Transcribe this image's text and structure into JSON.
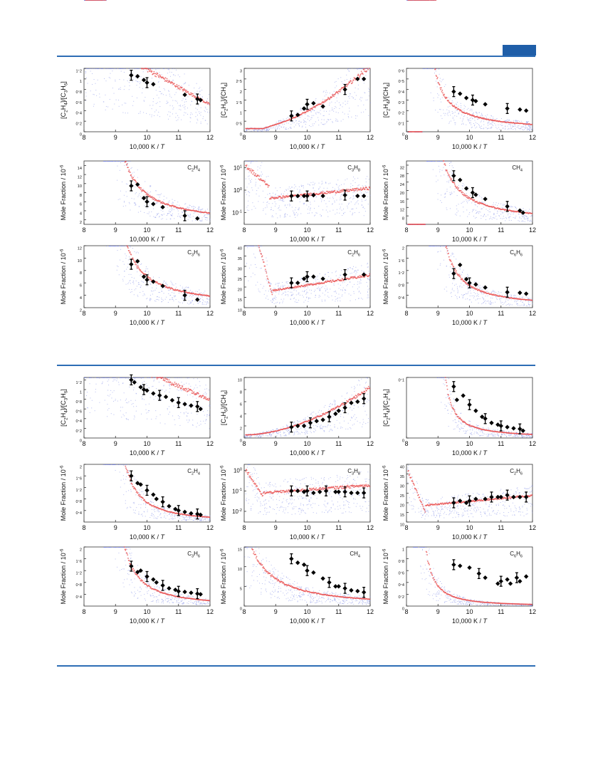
{
  "colors": {
    "accent": "#2d6db5",
    "sim_red": "#e84a4a",
    "sim_blue": "#7a86e6",
    "marker": "#000000"
  },
  "figure_a": {
    "xlabel": "10,000 K / T",
    "panels": [
      {
        "ylabel_html": "[C2H4]/[C3H6]",
        "label": "",
        "ylog": false,
        "ylim": [
          0,
          1.2
        ],
        "yticks": [
          "0",
          "0.2",
          "0.4",
          "0.6",
          "0.8",
          "1",
          "1.2"
        ]
      },
      {
        "ylabel_html": "[C2H6]/[CH4]",
        "label": "",
        "ylog": false,
        "ylim": [
          0,
          3
        ],
        "yticks": [
          "0",
          "0.5",
          "1",
          "1.5",
          "2",
          "2.5",
          "3"
        ]
      },
      {
        "ylabel_html": "[C2H4]/[CH4]",
        "label": "",
        "ylog": false,
        "ylim": [
          0,
          0.6
        ],
        "yticks": [
          "0",
          "0.1",
          "0.2",
          "0.3",
          "0.4",
          "0.5",
          "0.6"
        ]
      },
      {
        "ylabel_html": "Mole Fraction / 10-6",
        "label": "C2H4",
        "ylog": false,
        "ylim": [
          1,
          15
        ],
        "yticks": [
          "2",
          "4",
          "6",
          "8",
          "10",
          "12",
          "14"
        ]
      },
      {
        "ylabel_html": "Mole Fraction / 10-6",
        "label": "C3H8",
        "ylog": true,
        "ylim": [
          0.03,
          20
        ],
        "yticks": [
          "10-1",
          "100",
          "101"
        ]
      },
      {
        "ylabel_html": "Mole Fraction / 10-6",
        "label": "CH4",
        "ylog": false,
        "ylim": [
          4,
          34
        ],
        "yticks": [
          "8",
          "12",
          "16",
          "20",
          "24",
          "28",
          "32"
        ]
      },
      {
        "ylabel_html": "Mole Fraction / 10-6",
        "label": "C3H6",
        "ylog": false,
        "ylim": [
          2,
          12
        ],
        "yticks": [
          "2",
          "4",
          "6",
          "8",
          "10",
          "12"
        ]
      },
      {
        "ylabel_html": "Mole Fraction / 10-6",
        "label": "C2H6",
        "ylog": false,
        "ylim": [
          10,
          40
        ],
        "yticks": [
          "10",
          "15",
          "20",
          "25",
          "30",
          "35",
          "40"
        ]
      },
      {
        "ylabel_html": "Mole Fraction / 10-6",
        "label": "C6H6",
        "ylog": false,
        "ylim": [
          0,
          2
        ],
        "yticks": [
          "0.4",
          "0.8",
          "1.2",
          "1.6",
          "2"
        ]
      }
    ]
  },
  "figure_b": {
    "xlabel": "10,000 K / T",
    "panels": [
      {
        "ylabel_html": "[C2H4]/[C3H6]",
        "label": "",
        "ylog": false,
        "ylim": [
          0,
          1.25
        ],
        "yticks": [
          "0",
          "0.2",
          "0.4",
          "0.6",
          "0.8",
          "1",
          "1.2"
        ]
      },
      {
        "ylabel_html": "[C2H6]/[CH4]",
        "label": "",
        "ylog": false,
        "ylim": [
          0,
          10
        ],
        "yticks": [
          "0",
          "2",
          "4",
          "6",
          "8",
          "10"
        ]
      },
      {
        "ylabel_html": "[C2H4]/[C2H6]",
        "label": "",
        "ylog": false,
        "ylim": [
          0,
          0.1
        ],
        "yticks": [
          "0",
          "0.1"
        ]
      },
      {
        "ylabel_html": "Mole Fraction / 10-6",
        "label": "C2H4",
        "ylog": false,
        "ylim": [
          0,
          2
        ],
        "yticks": [
          "0.4",
          "0.8",
          "1.2",
          "1.6",
          "2"
        ]
      },
      {
        "ylabel_html": "Mole Fraction / 10-6",
        "label": "C3H8",
        "ylog": true,
        "ylim": [
          0.003,
          2
        ],
        "yticks": [
          "10-2",
          "10-1",
          "100"
        ]
      },
      {
        "ylabel_html": "Mole Fraction / 10-6",
        "label": "C2H6",
        "ylog": false,
        "ylim": [
          10,
          40
        ],
        "yticks": [
          "10",
          "15",
          "20",
          "25",
          "30",
          "35",
          "40"
        ]
      },
      {
        "ylabel_html": "Mole Fraction / 10-6",
        "label": "C3H6",
        "ylog": false,
        "ylim": [
          0,
          2
        ],
        "yticks": [
          "0.4",
          "0.8",
          "1.2",
          "1.6",
          "2"
        ]
      },
      {
        "ylabel_html": "Mole Fraction / 10-6",
        "label": "CH4",
        "ylog": false,
        "ylim": [
          0,
          15
        ],
        "yticks": [
          "0",
          "5",
          "10",
          "15"
        ]
      },
      {
        "ylabel_html": "Mole Fraction / 10-6",
        "label": "C6H6",
        "ylog": false,
        "ylim": [
          0,
          1
        ],
        "yticks": [
          "0",
          "0.2",
          "0.4",
          "0.6",
          "0.8",
          "1"
        ]
      }
    ]
  },
  "chart_data": [
    {
      "type": "scatter",
      "xlabel": "10,000 K / T",
      "ylabel": "[C2H4]/[C3H6]",
      "xlim": [
        8,
        12
      ],
      "ylim": [
        0,
        1.2
      ],
      "series": [
        {
          "values_x": [
            9.5,
            9.7,
            9.9,
            10.0,
            10.2,
            11.2,
            11.6,
            11.7
          ],
          "values_y": [
            1.07,
            1.05,
            0.98,
            0.93,
            0.9,
            0.7,
            0.62,
            0.6
          ]
        }
      ]
    },
    {
      "type": "scatter",
      "xlabel": "10,000 K / T",
      "ylabel": "[C2H6]/[CH4]",
      "xlim": [
        8,
        12
      ],
      "ylim": [
        0,
        3
      ],
      "series": [
        {
          "values_x": [
            9.5,
            9.7,
            9.9,
            10.0,
            10.2,
            10.5,
            11.2,
            11.6,
            11.8
          ],
          "values_y": [
            0.75,
            0.8,
            1.1,
            1.3,
            1.35,
            1.2,
            2.0,
            2.5,
            2.5
          ]
        }
      ]
    },
    {
      "type": "scatter",
      "xlabel": "10,000 K / T",
      "ylabel": "[C2H4]/[CH4]",
      "xlim": [
        8,
        12
      ],
      "ylim": [
        0,
        0.6
      ],
      "series": [
        {
          "values_x": [
            9.5,
            9.7,
            9.9,
            10.1,
            10.2,
            10.5,
            11.2,
            11.6,
            11.8
          ],
          "values_y": [
            0.38,
            0.36,
            0.32,
            0.3,
            0.29,
            0.26,
            0.22,
            0.21,
            0.2
          ]
        }
      ]
    },
    {
      "type": "scatter",
      "xlabel": "10,000 K / T",
      "ylabel": "Mole Fraction / 10-6",
      "xlim": [
        8,
        12
      ],
      "ylim": [
        1,
        15
      ],
      "series": [
        {
          "name": "C2H4",
          "values_x": [
            9.5,
            9.7,
            9.9,
            10.0,
            10.2,
            10.5,
            11.2,
            11.6
          ],
          "values_y": [
            9.5,
            9.8,
            6.8,
            6.0,
            5.5,
            4.8,
            2.9,
            2.3
          ]
        }
      ]
    },
    {
      "type": "scatter",
      "xlabel": "10,000 K / T",
      "ylabel": "Mole Fraction / 10-6",
      "xlim": [
        8,
        12
      ],
      "ylim": [
        0.03,
        20
      ],
      "ylog": true,
      "series": [
        {
          "name": "C3H8",
          "values_x": [
            9.5,
            9.7,
            9.9,
            10.0,
            10.2,
            10.5,
            11.2,
            11.6,
            11.8
          ],
          "values_y": [
            0.55,
            0.55,
            0.55,
            0.55,
            0.6,
            0.55,
            0.6,
            0.55,
            0.55
          ]
        }
      ]
    },
    {
      "type": "scatter",
      "xlabel": "10,000 K / T",
      "ylabel": "Mole Fraction / 10-6",
      "xlim": [
        8,
        12
      ],
      "ylim": [
        4,
        34
      ],
      "series": [
        {
          "name": "CH4",
          "values_x": [
            9.5,
            9.7,
            9.9,
            10.1,
            10.2,
            10.5,
            11.2,
            11.6,
            11.7
          ],
          "values_y": [
            27,
            25,
            21,
            19,
            18,
            16,
            12.5,
            10.5,
            9.5
          ]
        }
      ]
    },
    {
      "type": "scatter",
      "xlabel": "10,000 K / T",
      "ylabel": "Mole Fraction / 10-6",
      "xlim": [
        8,
        12
      ],
      "ylim": [
        2,
        12
      ],
      "series": [
        {
          "name": "C3H6",
          "values_x": [
            9.5,
            9.7,
            9.9,
            10.0,
            10.2,
            10.5,
            11.2,
            11.6
          ],
          "values_y": [
            9.0,
            9.5,
            7.0,
            6.5,
            6.2,
            5.5,
            4.0,
            3.3
          ]
        }
      ]
    },
    {
      "type": "scatter",
      "xlabel": "10,000 K / T",
      "ylabel": "Mole Fraction / 10-6",
      "xlim": [
        8,
        12
      ],
      "ylim": [
        10,
        40
      ],
      "series": [
        {
          "name": "C2H6",
          "values_x": [
            9.5,
            9.7,
            9.9,
            10.0,
            10.2,
            10.5,
            11.2,
            11.8
          ],
          "values_y": [
            22,
            22,
            24,
            25,
            25,
            24,
            26,
            26
          ]
        }
      ]
    },
    {
      "type": "scatter",
      "xlabel": "10,000 K / T",
      "ylabel": "Mole Fraction / 10-6",
      "xlim": [
        8,
        12
      ],
      "ylim": [
        0,
        2
      ],
      "series": [
        {
          "name": "C6H6",
          "values_x": [
            9.5,
            9.7,
            9.9,
            10.0,
            10.2,
            10.5,
            11.2,
            11.6,
            11.8
          ],
          "values_y": [
            1.1,
            1.38,
            0.92,
            0.8,
            0.75,
            0.65,
            0.5,
            0.48,
            0.45
          ]
        }
      ]
    },
    {
      "type": "scatter",
      "xlabel": "10,000 K / T",
      "ylabel": "[C2H4]/[C3H6]",
      "xlim": [
        8,
        12
      ],
      "ylim": [
        0,
        1.25
      ],
      "series": [
        {
          "values_x": [
            9.5,
            9.6,
            9.8,
            9.9,
            10.0,
            10.2,
            10.4,
            10.6,
            10.8,
            11.0,
            11.2,
            11.4,
            11.6,
            11.7
          ],
          "values_y": [
            1.2,
            1.15,
            1.05,
            1.0,
            0.98,
            0.92,
            0.88,
            0.85,
            0.78,
            0.73,
            0.7,
            0.67,
            0.65,
            0.6
          ]
        }
      ]
    },
    {
      "type": "scatter",
      "xlabel": "10,000 K / T",
      "ylabel": "[C2H6]/[CH4]",
      "xlim": [
        8,
        12
      ],
      "ylim": [
        0,
        10
      ],
      "series": [
        {
          "values_x": [
            9.5,
            9.7,
            9.9,
            10.1,
            10.3,
            10.5,
            10.7,
            10.9,
            11.0,
            11.2,
            11.4,
            11.6,
            11.8
          ],
          "values_y": [
            1.8,
            2.0,
            2.0,
            2.5,
            2.8,
            3.0,
            3.5,
            4.0,
            4.5,
            5.0,
            5.8,
            6.0,
            6.5
          ]
        }
      ]
    },
    {
      "type": "scatter",
      "xlabel": "10,000 K / T",
      "ylabel": "[C2H4]/[C2H6]",
      "xlim": [
        8,
        12
      ],
      "ylim": [
        0,
        0.1
      ],
      "series": [
        {
          "values_x": [
            9.5,
            9.6,
            9.8,
            10.0,
            10.2,
            10.4,
            10.5,
            10.7,
            10.9,
            11.0,
            11.2,
            11.4,
            11.6,
            11.7
          ],
          "values_y": [
            0.085,
            0.063,
            0.07,
            0.055,
            0.045,
            0.035,
            0.032,
            0.025,
            0.022,
            0.02,
            0.018,
            0.016,
            0.015,
            0.012
          ]
        }
      ]
    },
    {
      "type": "scatter",
      "xlabel": "10,000 K / T",
      "ylabel": "Mole Fraction / 10-6",
      "xlim": [
        8,
        12
      ],
      "ylim": [
        0,
        2
      ],
      "series": [
        {
          "name": "C2H4",
          "values_x": [
            9.5,
            9.7,
            9.8,
            10.0,
            10.2,
            10.3,
            10.5,
            10.7,
            10.9,
            11.0,
            11.2,
            11.4,
            11.6,
            11.7
          ],
          "values_y": [
            1.6,
            1.35,
            1.3,
            1.1,
            0.95,
            0.8,
            0.7,
            0.55,
            0.45,
            0.4,
            0.35,
            0.3,
            0.28,
            0.25
          ]
        }
      ]
    },
    {
      "type": "scatter",
      "xlabel": "10,000 K / T",
      "ylabel": "Mole Fraction / 10-6",
      "xlim": [
        8,
        12
      ],
      "ylim": [
        0.003,
        2
      ],
      "ylog": true,
      "series": [
        {
          "name": "C3H8",
          "values_x": [
            9.5,
            9.7,
            9.9,
            10.0,
            10.2,
            10.4,
            10.6,
            10.9,
            11.0,
            11.2,
            11.4,
            11.6,
            11.8
          ],
          "values_y": [
            0.1,
            0.1,
            0.09,
            0.1,
            0.08,
            0.09,
            0.1,
            0.09,
            0.09,
            0.09,
            0.08,
            0.08,
            0.08
          ]
        }
      ]
    },
    {
      "type": "scatter",
      "xlabel": "10,000 K / T",
      "ylabel": "Mole Fraction / 10-6",
      "xlim": [
        8,
        12
      ],
      "ylim": [
        10,
        40
      ],
      "series": [
        {
          "name": "C2H6",
          "values_x": [
            9.5,
            9.7,
            9.9,
            10.0,
            10.2,
            10.5,
            10.7,
            10.9,
            11.0,
            11.2,
            11.4,
            11.6,
            11.8
          ],
          "values_y": [
            20,
            21,
            20,
            21,
            22,
            22,
            23,
            23,
            23,
            24,
            23,
            23,
            23
          ]
        }
      ]
    },
    {
      "type": "scatter",
      "xlabel": "10,000 K / T",
      "ylabel": "Mole Fraction / 10-6",
      "xlim": [
        8,
        12
      ],
      "ylim": [
        0,
        2
      ],
      "series": [
        {
          "name": "C3H6",
          "values_x": [
            9.5,
            9.7,
            9.8,
            10.0,
            10.2,
            10.3,
            10.5,
            10.7,
            10.9,
            11.0,
            11.2,
            11.4,
            11.6,
            11.7
          ],
          "values_y": [
            1.35,
            1.15,
            1.2,
            1.0,
            0.9,
            0.8,
            0.7,
            0.6,
            0.55,
            0.5,
            0.48,
            0.45,
            0.42,
            0.4
          ]
        }
      ]
    },
    {
      "type": "scatter",
      "xlabel": "10,000 K / T",
      "ylabel": "Mole Fraction / 10-6",
      "xlim": [
        8,
        12
      ],
      "ylim": [
        0,
        15
      ],
      "series": [
        {
          "name": "CH4",
          "values_x": [
            9.5,
            9.7,
            9.9,
            10.0,
            10.2,
            10.5,
            10.7,
            10.9,
            11.0,
            11.2,
            11.4,
            11.6,
            11.8
          ],
          "values_y": [
            12,
            11,
            10.5,
            9,
            8.5,
            7,
            6,
            5,
            5,
            4.5,
            4,
            3.8,
            3.5
          ]
        }
      ]
    },
    {
      "type": "scatter",
      "xlabel": "10,000 K / T",
      "ylabel": "Mole Fraction / 10-6",
      "xlim": [
        8,
        12
      ],
      "ylim": [
        0,
        1
      ],
      "series": [
        {
          "name": "C6H6",
          "values_x": [
            9.5,
            9.7,
            10.0,
            10.3,
            10.5,
            10.9,
            11.0,
            11.2,
            11.3,
            11.5,
            11.6,
            11.8
          ],
          "values_y": [
            0.7,
            0.68,
            0.65,
            0.55,
            0.48,
            0.38,
            0.42,
            0.45,
            0.38,
            0.48,
            0.42,
            0.5
          ]
        }
      ]
    }
  ]
}
